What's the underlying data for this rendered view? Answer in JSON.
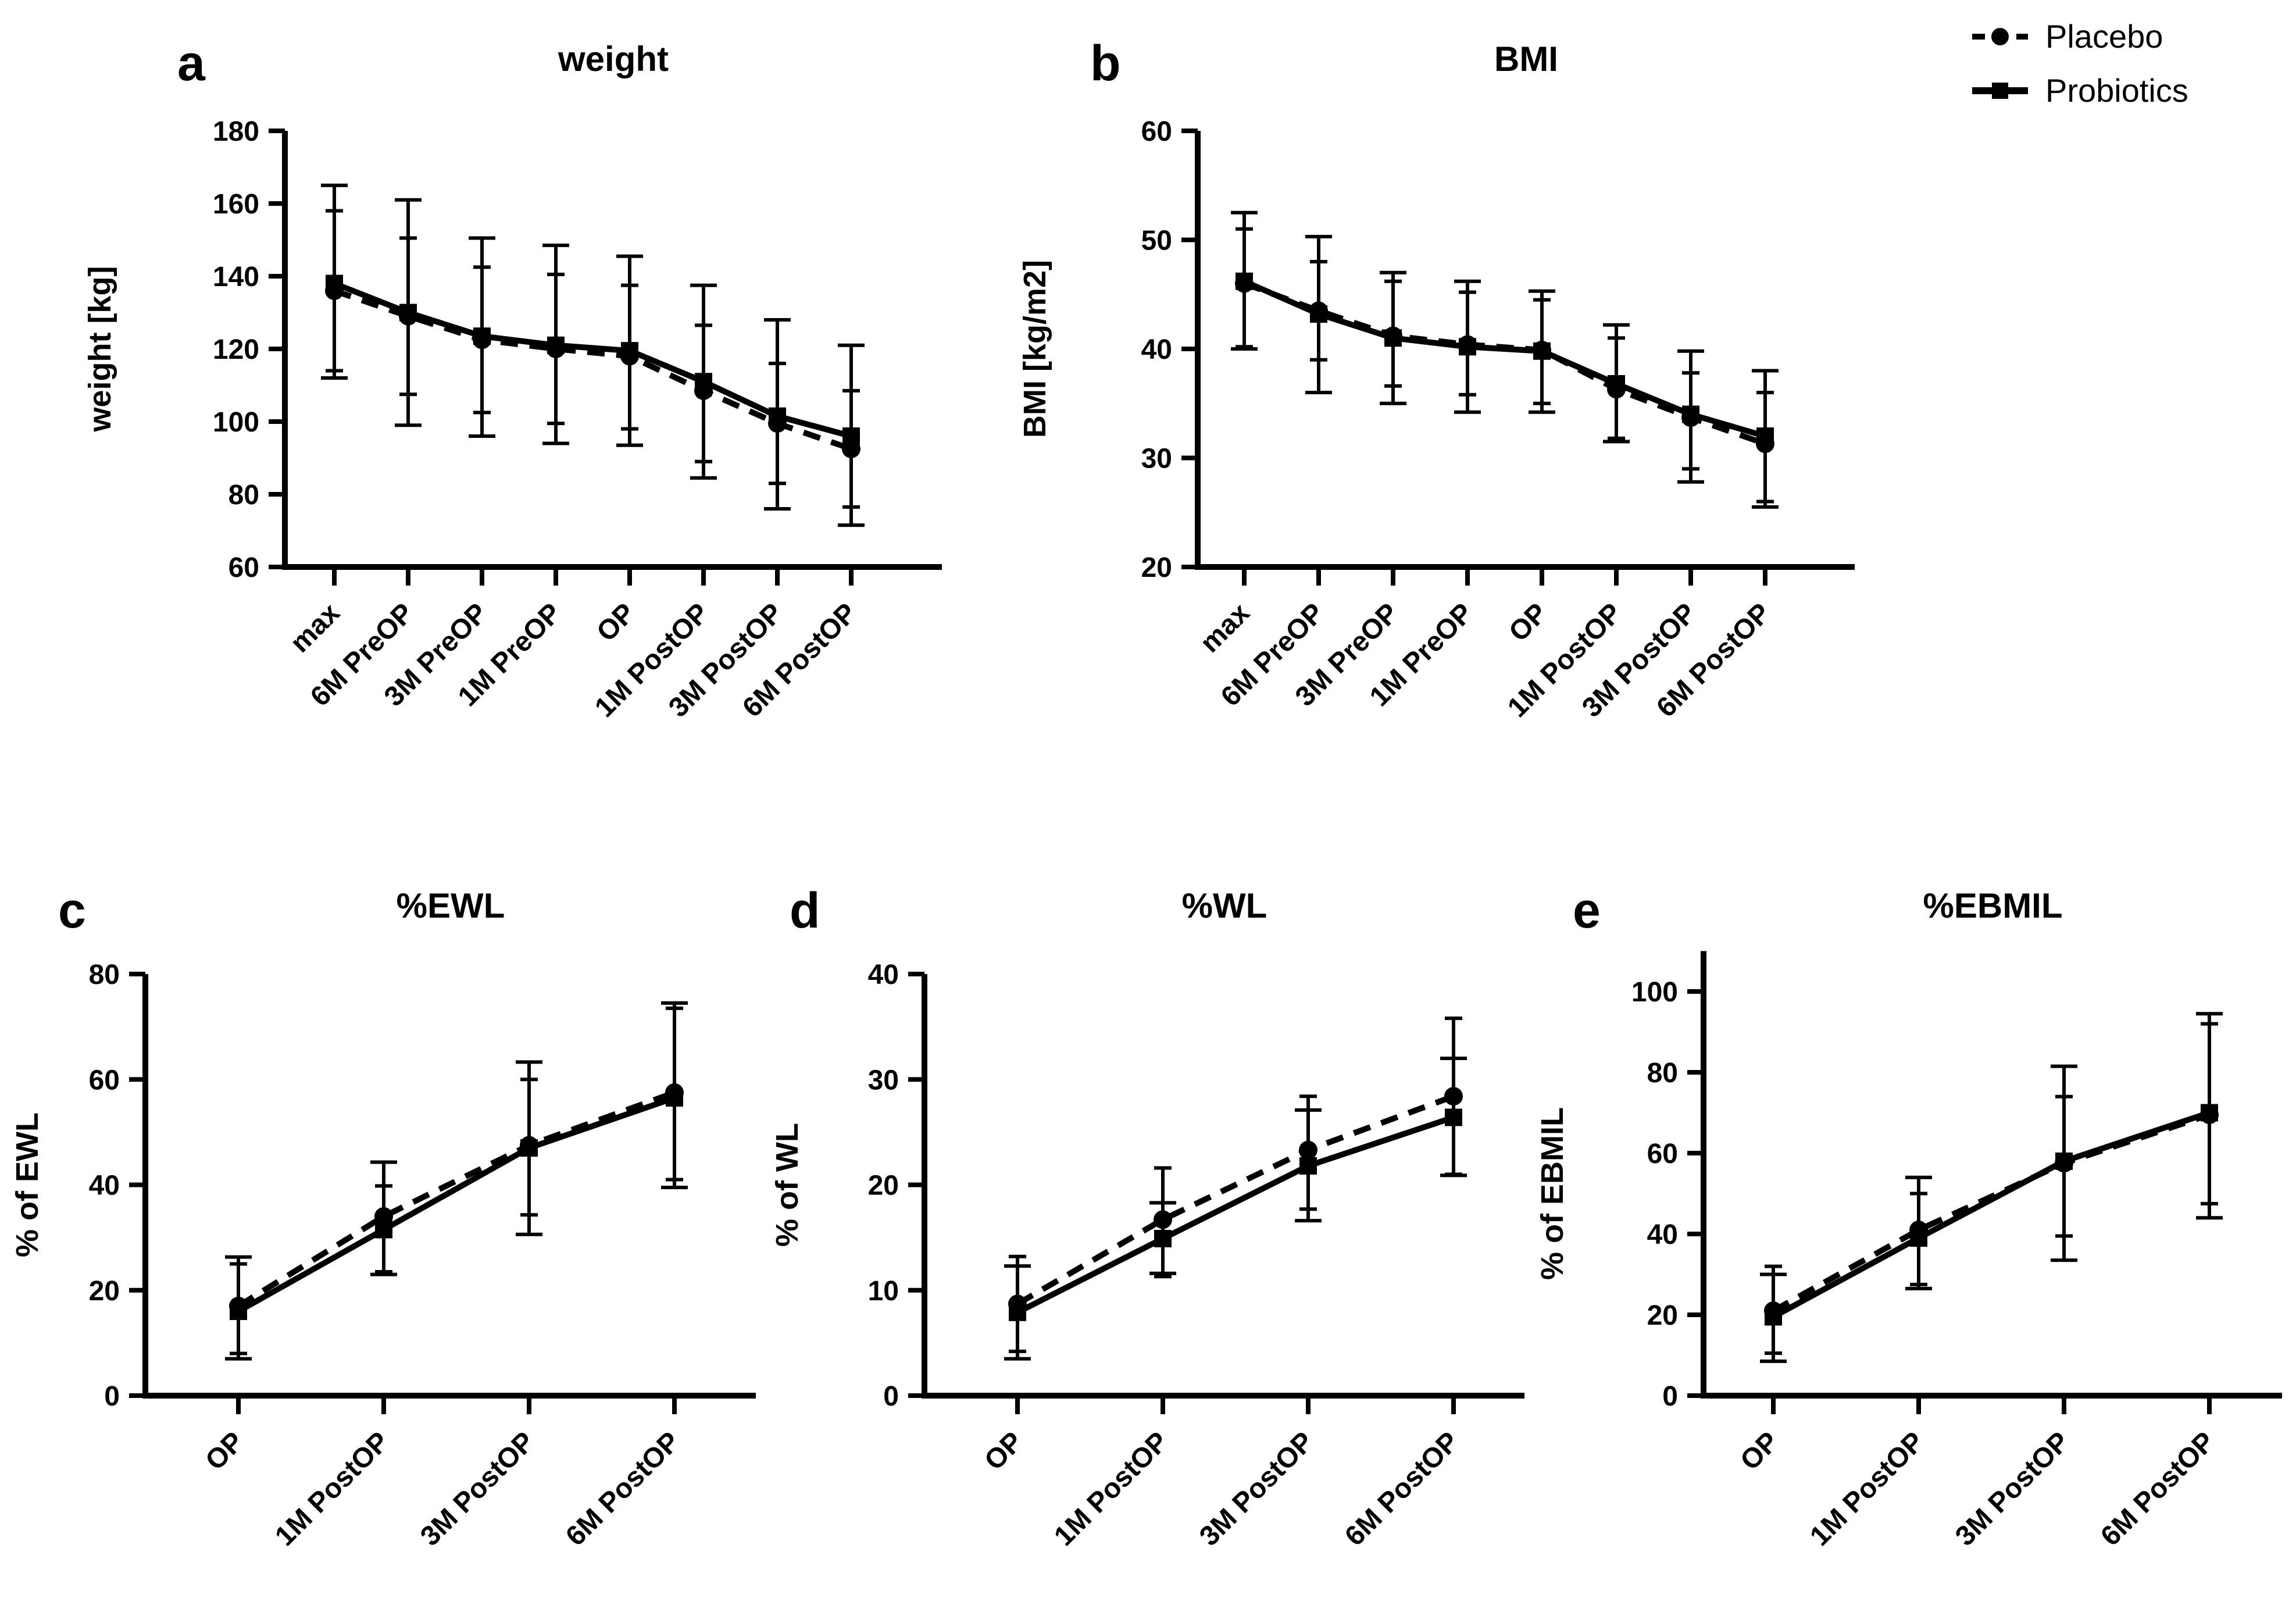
{
  "figure": {
    "background": "#ffffff",
    "ink": "#000000"
  },
  "legend": {
    "position": "top-right",
    "items": [
      {
        "label": "Placebo",
        "marker": "circle",
        "line": "dashed"
      },
      {
        "label": "Probiotics",
        "marker": "square",
        "line": "solid"
      }
    ]
  },
  "chart_data": [
    {
      "panel_label": "a",
      "title": "weight",
      "type": "line",
      "xlabel": "",
      "ylabel": "weight [kg]",
      "ylim": [
        60,
        180
      ],
      "yticks": [
        60,
        80,
        100,
        120,
        140,
        160,
        180
      ],
      "grid": false,
      "error_bars": true,
      "categories": [
        "max",
        "6M PreOP",
        "3M PreOP",
        "1M PreOP",
        "OP",
        "1M PostOP",
        "3M PostOP",
        "6M PostOP"
      ],
      "series": [
        {
          "name": "Placebo",
          "line": "dashed",
          "marker": "circle",
          "values": [
            136,
            129,
            122.5,
            120,
            118,
            108.5,
            99.5,
            92.5
          ],
          "err_lo": [
            114,
            107.5,
            102.5,
            99.5,
            98,
            89,
            83,
            76.5
          ],
          "err_hi": [
            158,
            150.5,
            142.5,
            140.5,
            137.5,
            126.5,
            116,
            108.5
          ]
        },
        {
          "name": "Probiotics",
          "line": "solid",
          "marker": "square",
          "values": [
            138,
            130,
            123.5,
            121,
            119.5,
            111,
            101.5,
            96
          ],
          "err_lo": [
            112,
            99,
            96,
            94,
            93.5,
            84.5,
            76,
            71.5
          ],
          "err_hi": [
            165,
            161,
            150.5,
            148.5,
            145.5,
            137.5,
            128,
            121
          ]
        }
      ]
    },
    {
      "panel_label": "b",
      "title": "BMI",
      "type": "line",
      "xlabel": "",
      "ylabel": "BMI [kg/m2]",
      "ylim": [
        20,
        60
      ],
      "yticks": [
        20,
        30,
        40,
        50,
        60
      ],
      "grid": false,
      "error_bars": true,
      "categories": [
        "max",
        "6M PreOP",
        "3M PreOP",
        "1M PreOP",
        "OP",
        "1M PostOP",
        "3M PostOP",
        "6M PostOP"
      ],
      "series": [
        {
          "name": "Placebo",
          "line": "dashed",
          "marker": "circle",
          "values": [
            46,
            43.5,
            41.2,
            40.4,
            39.9,
            36.3,
            33.7,
            31.3
          ],
          "err_lo": [
            40.2,
            39,
            36.6,
            35.8,
            35,
            31.8,
            29,
            26
          ],
          "err_hi": [
            51,
            48,
            46.2,
            45.2,
            44.5,
            41,
            37.8,
            36
          ]
        },
        {
          "name": "Probiotics",
          "line": "solid",
          "marker": "square",
          "values": [
            46.2,
            43.2,
            41,
            40.2,
            39.8,
            36.8,
            34,
            32
          ],
          "err_lo": [
            40,
            36,
            35,
            34.2,
            34.2,
            31.5,
            27.8,
            25.5
          ],
          "err_hi": [
            52.5,
            50.3,
            47,
            46.2,
            45.3,
            42.2,
            39.8,
            38
          ]
        }
      ]
    },
    {
      "panel_label": "c",
      "title": "%EWL",
      "type": "line",
      "xlabel": "",
      "ylabel": "% of EWL",
      "ylim": [
        0,
        80
      ],
      "yticks": [
        0,
        20,
        40,
        60,
        80
      ],
      "grid": false,
      "error_bars": true,
      "categories": [
        "OP",
        "1M PostOP",
        "3M PostOP",
        "6M PostOP"
      ],
      "series": [
        {
          "name": "Placebo",
          "line": "dashed",
          "marker": "circle",
          "values": [
            17,
            34,
            47.5,
            57.5
          ],
          "err_lo": [
            8,
            23.5,
            34.3,
            41
          ],
          "err_hi": [
            25,
            39.8,
            60,
            73.5
          ]
        },
        {
          "name": "Probiotics",
          "line": "solid",
          "marker": "square",
          "values": [
            16,
            31.5,
            47,
            56.5
          ],
          "err_lo": [
            7,
            23,
            30.6,
            39.5
          ],
          "err_hi": [
            26.3,
            44.3,
            63.3,
            74.5
          ]
        }
      ]
    },
    {
      "panel_label": "d",
      "title": "%WL",
      "type": "line",
      "xlabel": "",
      "ylabel": "% of WL",
      "ylim": [
        0,
        40
      ],
      "yticks": [
        0,
        10,
        20,
        30,
        40
      ],
      "grid": false,
      "error_bars": true,
      "categories": [
        "OP",
        "1M PostOP",
        "3M PostOP",
        "6M PostOP"
      ],
      "series": [
        {
          "name": "Placebo",
          "line": "dashed",
          "marker": "circle",
          "values": [
            8.7,
            16.7,
            23.3,
            28.4
          ],
          "err_lo": [
            4.2,
            11.3,
            17.7,
            21
          ],
          "err_hi": [
            13.2,
            21.6,
            28.4,
            35.8
          ]
        },
        {
          "name": "Probiotics",
          "line": "solid",
          "marker": "square",
          "values": [
            7.9,
            14.9,
            21.8,
            26.4
          ],
          "err_lo": [
            3.5,
            11.6,
            16.6,
            20.9
          ],
          "err_hi": [
            12.3,
            18.3,
            27.1,
            32
          ]
        }
      ]
    },
    {
      "panel_label": "e",
      "title": "%EBMIL",
      "type": "line",
      "xlabel": "",
      "ylabel": "% of EBMIL",
      "ylim": [
        0,
        100
      ],
      "axis_extends_to": 110,
      "yticks": [
        0,
        20,
        40,
        60,
        80,
        100
      ],
      "grid": false,
      "error_bars": true,
      "categories": [
        "OP",
        "1M PostOP",
        "3M PostOP",
        "6M PostOP"
      ],
      "series": [
        {
          "name": "Placebo",
          "line": "dashed",
          "marker": "circle",
          "values": [
            21,
            41,
            57.5,
            69.5
          ],
          "err_lo": [
            10.5,
            27.5,
            39.5,
            47.5
          ],
          "err_hi": [
            32,
            50,
            74,
            92
          ]
        },
        {
          "name": "Probiotics",
          "line": "solid",
          "marker": "square",
          "values": [
            19.5,
            39,
            58,
            70
          ],
          "err_lo": [
            8.5,
            26.5,
            33.5,
            44
          ],
          "err_hi": [
            30,
            54,
            81.5,
            94.5
          ]
        }
      ]
    }
  ]
}
